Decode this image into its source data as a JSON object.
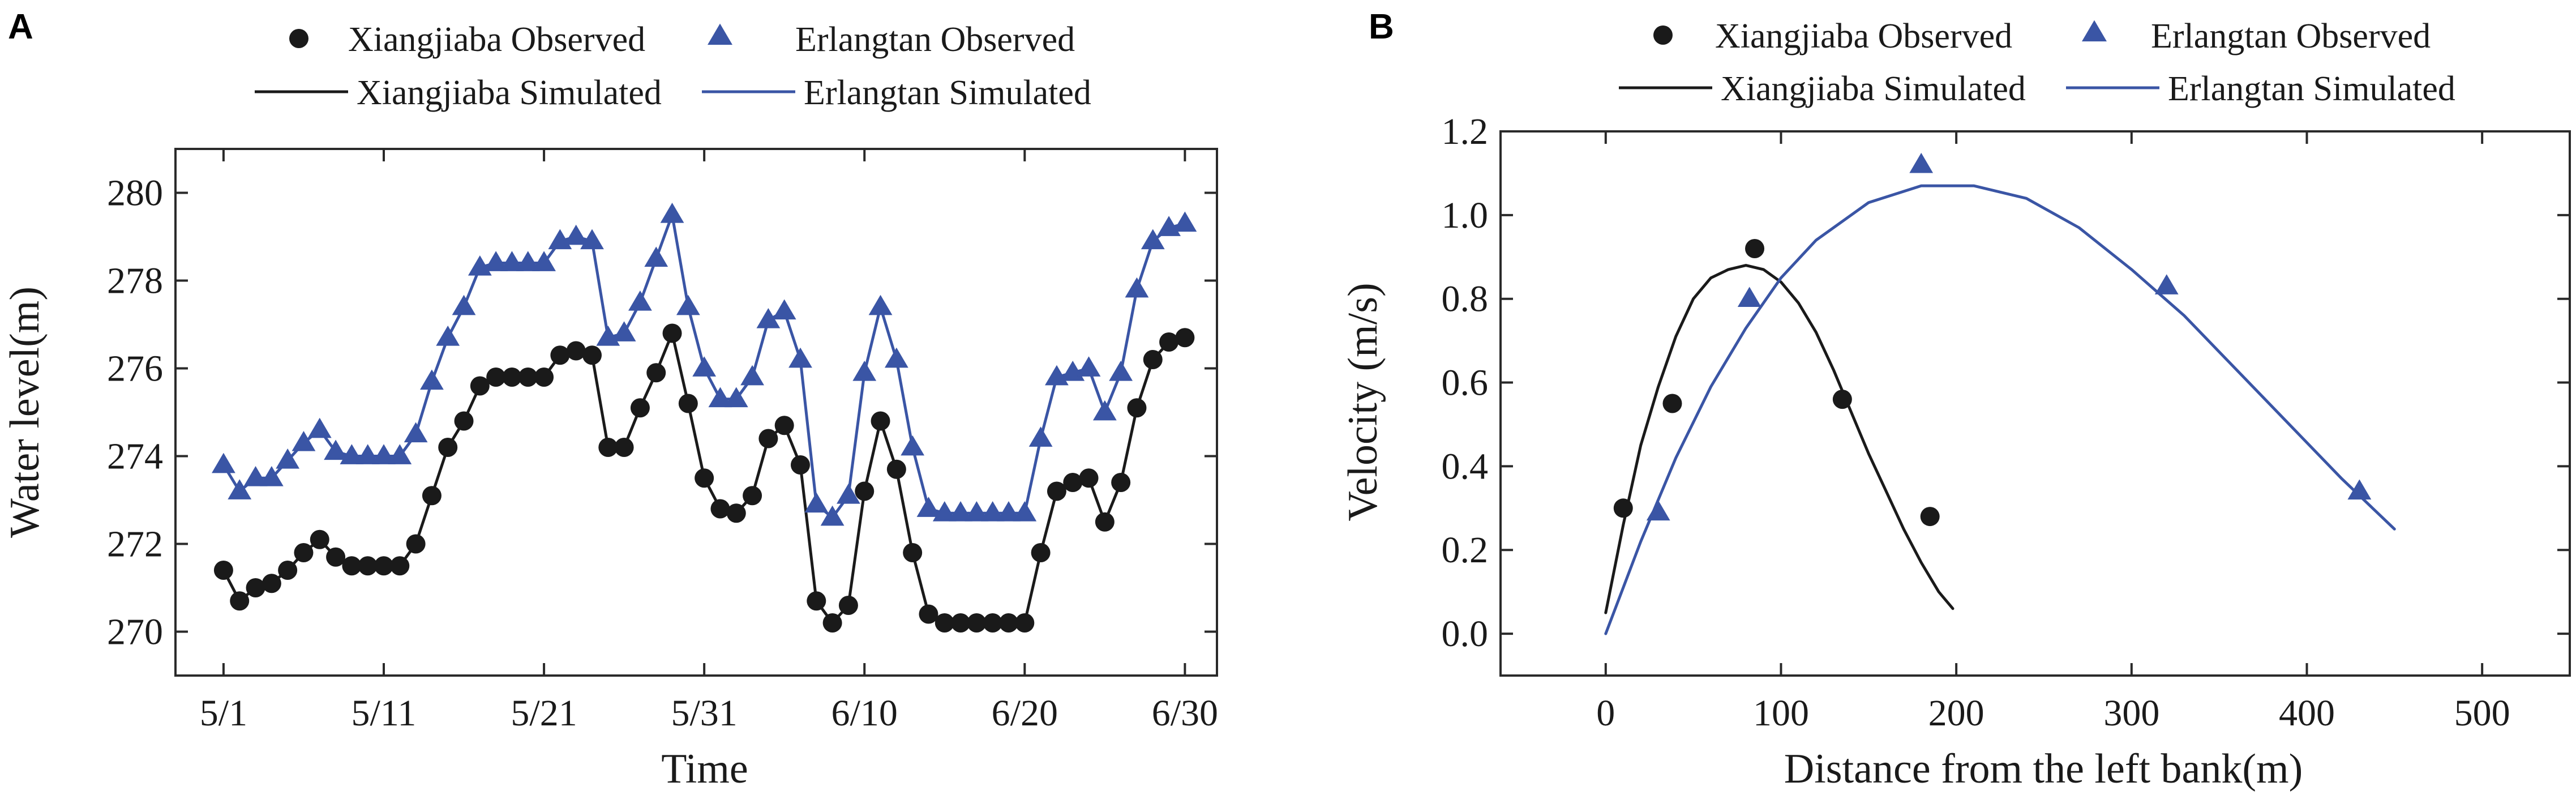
{
  "colors": {
    "xiangjiaba": "#1a1a1a",
    "erlangtan": "#3a55a5",
    "axis": "#2a2a2a"
  },
  "chart_data": [
    {
      "panel": "A",
      "type": "line",
      "title": "",
      "xlabel": "Time",
      "ylabel": "Water level(m)",
      "xlim": [
        -3,
        62
      ],
      "ylim": [
        269,
        281
      ],
      "x_tick_labels": [
        {
          "value": 0,
          "label": "5/1"
        },
        {
          "value": 10,
          "label": "5/11"
        },
        {
          "value": 20,
          "label": "5/21"
        },
        {
          "value": 30,
          "label": "5/31"
        },
        {
          "value": 40,
          "label": "6/10"
        },
        {
          "value": 50,
          "label": "6/20"
        },
        {
          "value": 60,
          "label": "6/30"
        }
      ],
      "y_tick_labels": [
        {
          "value": 270,
          "label": "270"
        },
        {
          "value": 272,
          "label": "272"
        },
        {
          "value": 274,
          "label": "274"
        },
        {
          "value": 276,
          "label": "276"
        },
        {
          "value": 278,
          "label": "278"
        },
        {
          "value": 280,
          "label": "280"
        }
      ],
      "legend": {
        "placement": "top",
        "entries": [
          {
            "label": "Xiangjiaba Observed",
            "marker": "circle",
            "series": "xiangjiaba"
          },
          {
            "label": "Erlangtan Observed",
            "marker": "triangle",
            "series": "erlangtan"
          },
          {
            "label": "Xiangjiaba Simulated",
            "marker": "line",
            "series": "xiangjiaba"
          },
          {
            "label": "Erlangtan Simulated",
            "marker": "line",
            "series": "erlangtan"
          }
        ]
      },
      "series": [
        {
          "name": "Xiangjiaba Observed",
          "kind": "scatter",
          "marker": "circle",
          "color_key": "xiangjiaba",
          "x": [
            0,
            1,
            2,
            3,
            4,
            5,
            6,
            7,
            8,
            9,
            10,
            11,
            12,
            13,
            14,
            15,
            16,
            17,
            18,
            19,
            20,
            21,
            22,
            23,
            24,
            25,
            26,
            27,
            28,
            29,
            30,
            31,
            32,
            33,
            34,
            35,
            36,
            37,
            38,
            39,
            40,
            41,
            42,
            43,
            44,
            45,
            46,
            47,
            48,
            49,
            50,
            51,
            52,
            53,
            54,
            55,
            56,
            57,
            58,
            59,
            60
          ],
          "y": [
            271.4,
            270.7,
            271.0,
            271.1,
            271.4,
            271.8,
            272.1,
            271.7,
            271.5,
            271.5,
            271.5,
            271.5,
            272.0,
            273.1,
            274.2,
            274.8,
            275.6,
            275.8,
            275.8,
            275.8,
            275.8,
            276.3,
            276.4,
            276.3,
            274.2,
            274.2,
            275.1,
            275.9,
            276.8,
            275.2,
            273.5,
            272.8,
            272.7,
            273.1,
            274.4,
            274.7,
            273.8,
            270.7,
            270.2,
            270.6,
            273.2,
            274.8,
            273.7,
            271.8,
            270.4,
            270.2,
            270.2,
            270.2,
            270.2,
            270.2,
            270.2,
            271.8,
            273.2,
            273.4,
            273.5,
            272.5,
            273.4,
            275.1,
            276.2,
            276.6,
            276.7
          ]
        },
        {
          "name": "Xiangjiaba Simulated",
          "kind": "line",
          "color_key": "xiangjiaba",
          "x": [
            0,
            1,
            2,
            3,
            4,
            5,
            6,
            7,
            8,
            9,
            10,
            11,
            12,
            13,
            14,
            15,
            16,
            17,
            18,
            19,
            20,
            21,
            22,
            23,
            24,
            25,
            26,
            27,
            28,
            29,
            30,
            31,
            32,
            33,
            34,
            35,
            36,
            37,
            38,
            39,
            40,
            41,
            42,
            43,
            44,
            45,
            46,
            47,
            48,
            49,
            50,
            51,
            52,
            53,
            54,
            55,
            56,
            57,
            58,
            59,
            60
          ],
          "y": [
            271.4,
            270.7,
            271.0,
            271.1,
            271.4,
            271.8,
            272.1,
            271.7,
            271.5,
            271.5,
            271.5,
            271.5,
            272.0,
            273.1,
            274.2,
            274.8,
            275.6,
            275.8,
            275.8,
            275.8,
            275.8,
            276.3,
            276.4,
            276.3,
            274.2,
            274.2,
            275.1,
            275.9,
            276.8,
            275.2,
            273.5,
            272.8,
            272.7,
            273.1,
            274.4,
            274.7,
            273.8,
            270.7,
            270.2,
            270.6,
            273.2,
            274.8,
            273.7,
            271.8,
            270.4,
            270.2,
            270.2,
            270.2,
            270.2,
            270.2,
            270.2,
            271.8,
            273.2,
            273.4,
            273.5,
            272.5,
            273.4,
            275.1,
            276.2,
            276.6,
            276.7
          ]
        },
        {
          "name": "Erlangtan Observed",
          "kind": "scatter",
          "marker": "triangle",
          "color_key": "erlangtan",
          "x": [
            0,
            1,
            2,
            3,
            4,
            5,
            6,
            7,
            8,
            9,
            10,
            11,
            12,
            13,
            14,
            15,
            16,
            17,
            18,
            19,
            20,
            21,
            22,
            23,
            24,
            25,
            26,
            27,
            28,
            29,
            30,
            31,
            32,
            33,
            34,
            35,
            36,
            37,
            38,
            39,
            40,
            41,
            42,
            43,
            44,
            45,
            46,
            47,
            48,
            49,
            50,
            51,
            52,
            53,
            54,
            55,
            56,
            57,
            58,
            59,
            60
          ],
          "y": [
            273.8,
            273.2,
            273.5,
            273.5,
            273.9,
            274.3,
            274.6,
            274.1,
            274.0,
            274.0,
            274.0,
            274.0,
            274.5,
            275.7,
            276.7,
            277.4,
            278.3,
            278.4,
            278.4,
            278.4,
            278.4,
            278.9,
            279.0,
            278.9,
            276.7,
            276.8,
            277.5,
            278.5,
            279.5,
            277.4,
            276.0,
            275.3,
            275.3,
            275.8,
            277.1,
            277.3,
            276.2,
            272.9,
            272.6,
            273.1,
            275.9,
            277.4,
            276.2,
            274.2,
            272.8,
            272.7,
            272.7,
            272.7,
            272.7,
            272.7,
            272.7,
            274.4,
            275.8,
            275.9,
            276.0,
            275.0,
            275.9,
            277.8,
            278.9,
            279.2,
            279.3
          ]
        },
        {
          "name": "Erlangtan Simulated",
          "kind": "line",
          "color_key": "erlangtan",
          "x": [
            0,
            1,
            2,
            3,
            4,
            5,
            6,
            7,
            8,
            9,
            10,
            11,
            12,
            13,
            14,
            15,
            16,
            17,
            18,
            19,
            20,
            21,
            22,
            23,
            24,
            25,
            26,
            27,
            28,
            29,
            30,
            31,
            32,
            33,
            34,
            35,
            36,
            37,
            38,
            39,
            40,
            41,
            42,
            43,
            44,
            45,
            46,
            47,
            48,
            49,
            50,
            51,
            52,
            53,
            54,
            55,
            56,
            57,
            58,
            59,
            60
          ],
          "y": [
            273.8,
            273.2,
            273.5,
            273.5,
            273.9,
            274.3,
            274.6,
            274.1,
            274.0,
            274.0,
            274.0,
            274.0,
            274.5,
            275.7,
            276.7,
            277.4,
            278.3,
            278.4,
            278.4,
            278.4,
            278.4,
            278.9,
            279.0,
            278.9,
            276.7,
            276.8,
            277.5,
            278.5,
            279.5,
            277.4,
            276.0,
            275.3,
            275.3,
            275.8,
            277.1,
            277.3,
            276.2,
            272.9,
            272.6,
            273.1,
            275.9,
            277.4,
            276.2,
            274.2,
            272.8,
            272.7,
            272.7,
            272.7,
            272.7,
            272.7,
            272.7,
            274.4,
            275.8,
            275.9,
            276.0,
            275.0,
            275.9,
            277.8,
            278.9,
            279.2,
            279.3
          ]
        }
      ]
    },
    {
      "panel": "B",
      "type": "line",
      "title": "",
      "xlabel": "Distance from the left bank(m)",
      "ylabel": "Velocity (m/s)",
      "xlim": [
        -60,
        550
      ],
      "ylim": [
        -0.1,
        1.2
      ],
      "x_tick_labels": [
        {
          "value": 0,
          "label": "0"
        },
        {
          "value": 100,
          "label": "100"
        },
        {
          "value": 200,
          "label": "200"
        },
        {
          "value": 300,
          "label": "300"
        },
        {
          "value": 400,
          "label": "400"
        },
        {
          "value": 500,
          "label": "500"
        }
      ],
      "y_tick_labels": [
        {
          "value": 0.0,
          "label": "0.0"
        },
        {
          "value": 0.2,
          "label": "0.2"
        },
        {
          "value": 0.4,
          "label": "0.4"
        },
        {
          "value": 0.6,
          "label": "0.6"
        },
        {
          "value": 0.8,
          "label": "0.8"
        },
        {
          "value": 1.0,
          "label": "1.0"
        },
        {
          "value": 1.2,
          "label": "1.2"
        }
      ],
      "legend": {
        "placement": "top",
        "entries": [
          {
            "label": "Xiangjiaba Observed",
            "marker": "circle",
            "series": "xiangjiaba"
          },
          {
            "label": "Erlangtan Observed",
            "marker": "triangle",
            "series": "erlangtan"
          },
          {
            "label": "Xiangjiaba Simulated",
            "marker": "line",
            "series": "xiangjiaba"
          },
          {
            "label": "Erlangtan Simulated",
            "marker": "line",
            "series": "erlangtan"
          }
        ]
      },
      "series": [
        {
          "name": "Xiangjiaba Observed",
          "kind": "scatter",
          "marker": "circle",
          "color_key": "xiangjiaba",
          "x": [
            10,
            38,
            85,
            135,
            185
          ],
          "y": [
            0.3,
            0.55,
            0.92,
            0.56,
            0.28
          ]
        },
        {
          "name": "Xiangjiaba Simulated",
          "kind": "line",
          "color_key": "xiangjiaba",
          "x": [
            0,
            10,
            20,
            30,
            40,
            50,
            60,
            70,
            80,
            90,
            100,
            110,
            120,
            130,
            140,
            150,
            160,
            170,
            180,
            190,
            198
          ],
          "y": [
            0.05,
            0.26,
            0.45,
            0.59,
            0.71,
            0.8,
            0.85,
            0.87,
            0.88,
            0.87,
            0.84,
            0.79,
            0.72,
            0.63,
            0.53,
            0.43,
            0.34,
            0.25,
            0.17,
            0.1,
            0.06
          ]
        },
        {
          "name": "Erlangtan Observed",
          "kind": "scatter",
          "marker": "triangle",
          "color_key": "erlangtan",
          "x": [
            30,
            82,
            180,
            320,
            430
          ],
          "y": [
            0.29,
            0.8,
            1.12,
            0.83,
            0.34
          ]
        },
        {
          "name": "Erlangtan Simulated",
          "kind": "line",
          "color_key": "erlangtan",
          "x": [
            0,
            20,
            40,
            60,
            80,
            100,
            120,
            150,
            180,
            210,
            240,
            270,
            300,
            330,
            360,
            390,
            420,
            450
          ],
          "y": [
            0.0,
            0.22,
            0.42,
            0.59,
            0.73,
            0.85,
            0.94,
            1.03,
            1.07,
            1.07,
            1.04,
            0.97,
            0.87,
            0.76,
            0.63,
            0.5,
            0.37,
            0.25
          ]
        }
      ]
    }
  ]
}
